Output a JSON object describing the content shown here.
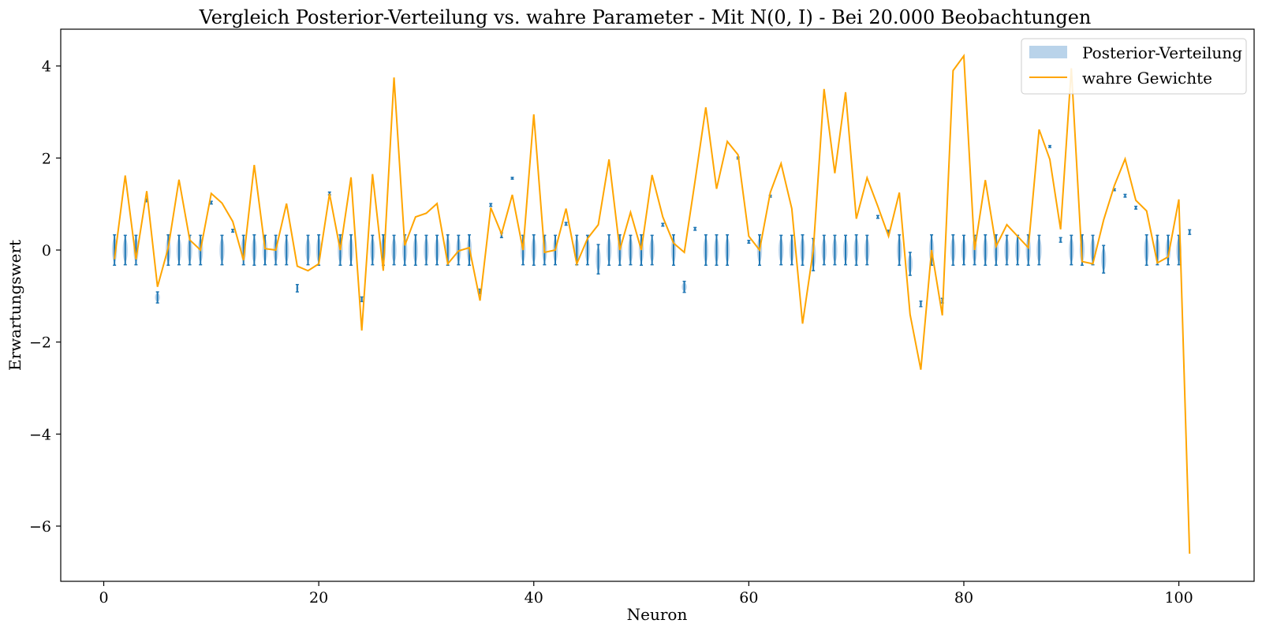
{
  "chart_data": {
    "type": "errorbar-violin-line",
    "title": "Vergleich Posterior-Verteilung vs. wahre Parameter - Mit N(0, I) - Bei 20.000 Beobachtungen",
    "xlabel": "Neuron",
    "ylabel": "Erwartungswert",
    "xlim": [
      -4,
      107
    ],
    "ylim": [
      -7.2,
      4.8
    ],
    "x_ticks": [
      0,
      20,
      40,
      60,
      80,
      100
    ],
    "y_ticks": [
      -6,
      -4,
      -2,
      0,
      2,
      4
    ],
    "grid": false,
    "legend": {
      "placement": "top-right",
      "entries": [
        "Posterior-Verteilung",
        "wahre Gewichte"
      ]
    },
    "colors": {
      "posterior": "#1f77b4",
      "posterior_fill": "#b9d3ea",
      "true_weights": "#ffa500"
    },
    "series": [
      {
        "name": "Posterior-Verteilung",
        "x": [
          1,
          2,
          3,
          4,
          5,
          6,
          7,
          8,
          9,
          10,
          11,
          12,
          13,
          14,
          15,
          16,
          17,
          18,
          19,
          20,
          21,
          22,
          23,
          24,
          25,
          26,
          27,
          28,
          29,
          30,
          31,
          32,
          33,
          34,
          35,
          36,
          37,
          38,
          39,
          40,
          41,
          42,
          43,
          44,
          45,
          46,
          47,
          48,
          49,
          50,
          51,
          52,
          53,
          54,
          55,
          56,
          57,
          58,
          59,
          60,
          61,
          62,
          63,
          64,
          65,
          66,
          67,
          68,
          69,
          70,
          71,
          72,
          73,
          74,
          75,
          76,
          77,
          78,
          79,
          80,
          81,
          82,
          83,
          84,
          85,
          86,
          87,
          88,
          89,
          90,
          91,
          92,
          93,
          94,
          95,
          96,
          97,
          98,
          99,
          100,
          101
        ],
        "mean": [
          0,
          0,
          0,
          1.08,
          -1.03,
          0,
          0,
          0,
          0,
          1.03,
          0,
          0.42,
          0,
          0,
          0,
          0,
          0,
          -0.83,
          0,
          0,
          1.23,
          0,
          0,
          -1.07,
          0,
          0,
          0,
          0,
          0,
          0,
          0,
          0,
          0,
          0,
          -0.9,
          0.98,
          0.32,
          1.56,
          0,
          0,
          0,
          0,
          0.57,
          0,
          0,
          -0.2,
          0,
          0,
          0,
          0,
          0,
          0.55,
          0,
          -0.8,
          0.46,
          0,
          0,
          0,
          2,
          0.18,
          0,
          1.17,
          0,
          0,
          0,
          -0.1,
          0,
          0,
          0,
          0,
          0,
          0.72,
          0.4,
          0,
          -0.3,
          -1.17,
          0,
          -1.1,
          0,
          0,
          0,
          0,
          0,
          0,
          0,
          0,
          0,
          2.25,
          0.22,
          0,
          0,
          0,
          -0.2,
          1.31,
          1.18,
          0.92,
          0,
          0,
          0,
          0,
          0.39
        ],
        "err": [
          0.33,
          0.32,
          0.32,
          0.03,
          0.12,
          0.33,
          0.32,
          0.32,
          0.32,
          0.03,
          0.32,
          0.03,
          0.32,
          0.33,
          0.32,
          0.32,
          0.32,
          0.08,
          0.32,
          0.33,
          0.03,
          0.33,
          0.33,
          0.05,
          0.32,
          0.33,
          0.32,
          0.33,
          0.33,
          0.32,
          0.32,
          0.33,
          0.32,
          0.33,
          0.05,
          0.03,
          0.05,
          0.02,
          0.32,
          0.33,
          0.32,
          0.32,
          0.03,
          0.32,
          0.32,
          0.32,
          0.33,
          0.33,
          0.32,
          0.33,
          0.32,
          0.03,
          0.33,
          0.12,
          0.03,
          0.33,
          0.33,
          0.33,
          0.02,
          0.03,
          0.33,
          0.02,
          0.32,
          0.32,
          0.33,
          0.35,
          0.32,
          0.32,
          0.32,
          0.33,
          0.32,
          0.03,
          0.03,
          0.33,
          0.25,
          0.06,
          0.33,
          0.05,
          0.33,
          0.32,
          0.32,
          0.33,
          0.33,
          0.32,
          0.32,
          0.33,
          0.32,
          0.02,
          0.05,
          0.32,
          0.33,
          0.32,
          0.3,
          0.02,
          0.03,
          0.03,
          0.33,
          0.32,
          0.32,
          0.32,
          0.05
        ]
      },
      {
        "name": "wahre Gewichte",
        "x": [
          1,
          2,
          3,
          4,
          5,
          6,
          7,
          8,
          9,
          10,
          11,
          12,
          13,
          14,
          15,
          16,
          17,
          18,
          19,
          20,
          21,
          22,
          23,
          24,
          25,
          26,
          27,
          28,
          29,
          30,
          31,
          32,
          33,
          34,
          35,
          36,
          37,
          38,
          39,
          40,
          41,
          42,
          43,
          44,
          45,
          46,
          47,
          48,
          49,
          50,
          51,
          52,
          53,
          54,
          55,
          56,
          57,
          58,
          59,
          60,
          61,
          62,
          63,
          64,
          65,
          66,
          67,
          68,
          69,
          70,
          71,
          72,
          73,
          74,
          75,
          76,
          77,
          78,
          79,
          80,
          81,
          82,
          83,
          84,
          85,
          86,
          87,
          88,
          89,
          90,
          91,
          92,
          93,
          94,
          95,
          96,
          97,
          98,
          99,
          100,
          101
        ],
        "y": [
          -0.2,
          1.62,
          -0.2,
          1.28,
          -0.8,
          0.05,
          1.53,
          0.22,
          0,
          1.23,
          1.02,
          0.62,
          -0.22,
          1.85,
          0.03,
          0,
          1.01,
          -0.35,
          -0.45,
          -0.3,
          1.22,
          0,
          1.58,
          -1.75,
          1.65,
          -0.45,
          3.75,
          0.1,
          0.72,
          0.8,
          1.01,
          -0.3,
          -0.02,
          0.05,
          -1.1,
          0.92,
          0.35,
          1.2,
          0,
          2.95,
          -0.05,
          0,
          0.9,
          -0.3,
          0.25,
          0.55,
          1.97,
          0,
          0.82,
          0,
          1.63,
          0.72,
          0.15,
          -0.05,
          1.5,
          3.1,
          1.33,
          2.36,
          2.07,
          0.3,
          0,
          1.25,
          1.88,
          0.9,
          -1.6,
          0,
          3.5,
          1.67,
          3.43,
          0.68,
          1.57,
          0.95,
          0.3,
          1.25,
          -1.4,
          -2.6,
          0,
          -1.42,
          3.9,
          4.22,
          0,
          1.52,
          0.08,
          0.55,
          0.3,
          0.05,
          2.62,
          1.97,
          0.45,
          3.95,
          -0.25,
          -0.3,
          0.65,
          1.4,
          1.98,
          1.08,
          0.85,
          -0.28,
          -0.15,
          1.1,
          -6.6
        ]
      }
    ]
  }
}
